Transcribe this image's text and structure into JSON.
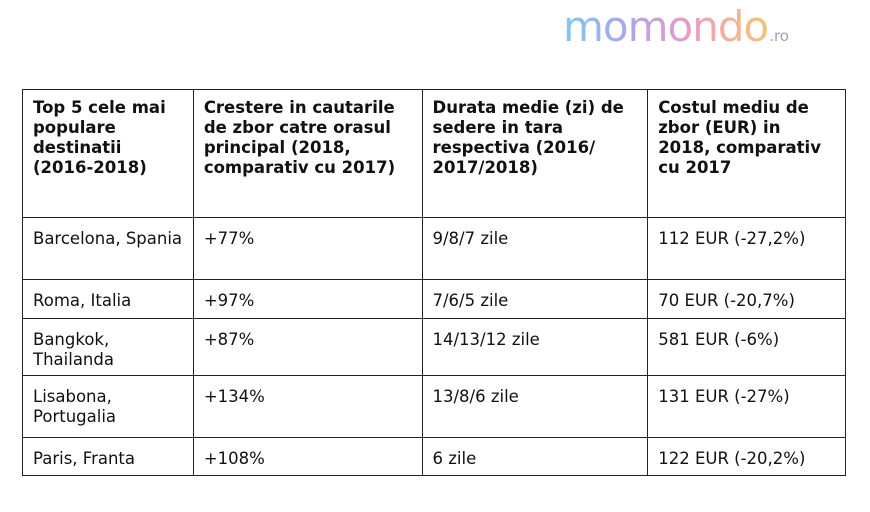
{
  "brand": {
    "name": "momondo",
    "tld": ".ro"
  },
  "table": {
    "headers": [
      "Top 5 cele mai populare destinatii (2016-2018)",
      "Crestere in cautarile de zbor catre orasul principal (2018, comparativ cu 2017)",
      "Durata medie (zi) de sedere in tara respectiva (2016/ 2017/2018)",
      "Costul mediu de zbor (EUR) in 2018, comparativ cu 2017"
    ],
    "rows": [
      [
        "Barcelona, Spania",
        "+77%",
        "9/8/7 zile",
        "112 EUR (-27,2%)"
      ],
      [
        "Roma, Italia",
        "+97%",
        "7/6/5  zile",
        "70 EUR (-20,7%)"
      ],
      [
        "Bangkok, Thailanda",
        "+87%",
        "14/13/12  zile",
        "581 EUR (-6%)"
      ],
      [
        "Lisabona, Portugalia",
        "+134%",
        "13/8/6  zile",
        "131 EUR (-27%)"
      ],
      [
        "Paris, Franta",
        "+108%",
        "6  zile",
        "122 EUR (-20,2%)"
      ]
    ]
  }
}
